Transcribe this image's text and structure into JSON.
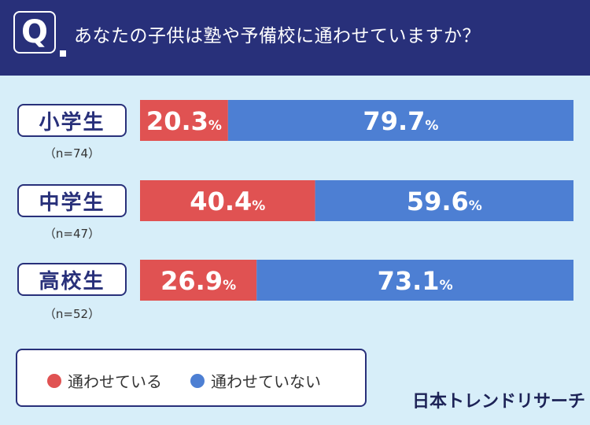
{
  "header": {
    "badge": "Q",
    "question": "あなたの子供は塾や予備校に通わせていますか？"
  },
  "legend": {
    "items": [
      {
        "label": "通わせている",
        "color": "#e05252"
      },
      {
        "label": "通わせていない",
        "color": "#4d7fd3"
      }
    ]
  },
  "brand": "日本トレンドリサーチ",
  "chart_data": {
    "type": "bar",
    "orientation": "horizontal-stacked-100",
    "title": "あなたの子供は塾や予備校に通わせていますか？",
    "unit": "%",
    "categories": [
      "小学生",
      "中学生",
      "高校生"
    ],
    "sample_sizes": [
      "（n=74）",
      "（n=47）",
      "（n=52）"
    ],
    "series": [
      {
        "name": "通わせている",
        "color": "#e05252",
        "values": [
          20.3,
          40.4,
          26.9
        ]
      },
      {
        "name": "通わせていない",
        "color": "#4d7fd3",
        "values": [
          79.7,
          59.6,
          73.1
        ]
      }
    ],
    "xlim": [
      0,
      100
    ],
    "legend_position": "bottom-left"
  }
}
